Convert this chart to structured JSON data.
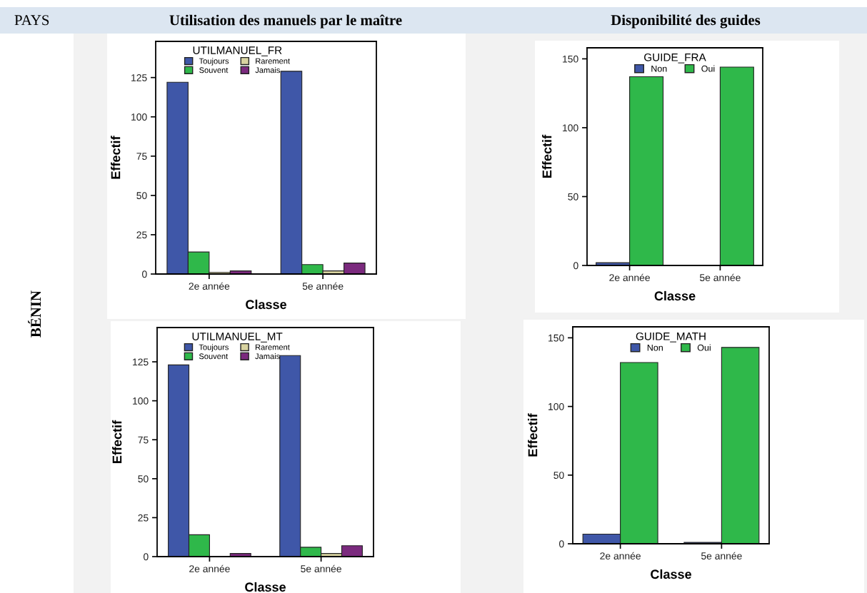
{
  "chart_data": [
    {
      "type": "bar",
      "legend_title": "UTILMANUEL_FR",
      "xlabel": "Classe",
      "ylabel": "Effectif",
      "categories": [
        "2e année",
        "5e année"
      ],
      "series": [
        {
          "name": "Toujours",
          "color": "#3f57a8",
          "values": [
            122,
            129
          ]
        },
        {
          "name": "Souvent",
          "color": "#2fb84a",
          "values": [
            14,
            6
          ]
        },
        {
          "name": "Rarement",
          "color": "#d8d3a0",
          "values": [
            1,
            2
          ]
        },
        {
          "name": "Jamais",
          "color": "#7b2a7e",
          "values": [
            2,
            7
          ]
        }
      ],
      "ylim": [
        0,
        148
      ],
      "yticks": [
        0,
        25,
        50,
        75,
        100,
        125
      ],
      "legend": "top",
      "grid": false,
      "annotations": [
        "PAYS",
        "Utilisation des manuels par le maître",
        "BÉNIN"
      ]
    },
    {
      "type": "bar",
      "legend_title": "GUIDE_FRA",
      "xlabel": "Classe",
      "ylabel": "Effectif",
      "categories": [
        "2e année",
        "5e année"
      ],
      "series": [
        {
          "name": "Non",
          "color": "#3f57a8",
          "values": [
            2,
            0
          ]
        },
        {
          "name": "Oui",
          "color": "#2fb84a",
          "values": [
            137,
            144
          ]
        }
      ],
      "ylim": [
        0,
        158
      ],
      "yticks": [
        0,
        50,
        100,
        150
      ],
      "legend": "top",
      "grid": false,
      "annotations": [
        "Disponibilité des guides"
      ]
    },
    {
      "type": "bar",
      "legend_title": "UTILMANUEL_MT",
      "xlabel": "Classe",
      "ylabel": "Effectif",
      "categories": [
        "2e année",
        "5e année"
      ],
      "series": [
        {
          "name": "Toujours",
          "color": "#3f57a8",
          "values": [
            123,
            129
          ]
        },
        {
          "name": "Souvent",
          "color": "#2fb84a",
          "values": [
            14,
            6
          ]
        },
        {
          "name": "Rarement",
          "color": "#d8d3a0",
          "values": [
            0,
            2
          ]
        },
        {
          "name": "Jamais",
          "color": "#7b2a7e",
          "values": [
            2,
            7
          ]
        }
      ],
      "ylim": [
        0,
        147
      ],
      "yticks": [
        0,
        25,
        50,
        75,
        100,
        125
      ],
      "legend": "top",
      "grid": false
    },
    {
      "type": "bar",
      "legend_title": "GUIDE_MATH",
      "xlabel": "Classe",
      "ylabel": "Effectif",
      "categories": [
        "2e année",
        "5e année"
      ],
      "series": [
        {
          "name": "Non",
          "color": "#3f57a8",
          "values": [
            7,
            1
          ]
        },
        {
          "name": "Oui",
          "color": "#2fb84a",
          "values": [
            132,
            143
          ]
        }
      ],
      "ylim": [
        0,
        158
      ],
      "yticks": [
        0,
        50,
        100,
        150
      ],
      "legend": "top",
      "grid": false
    }
  ]
}
